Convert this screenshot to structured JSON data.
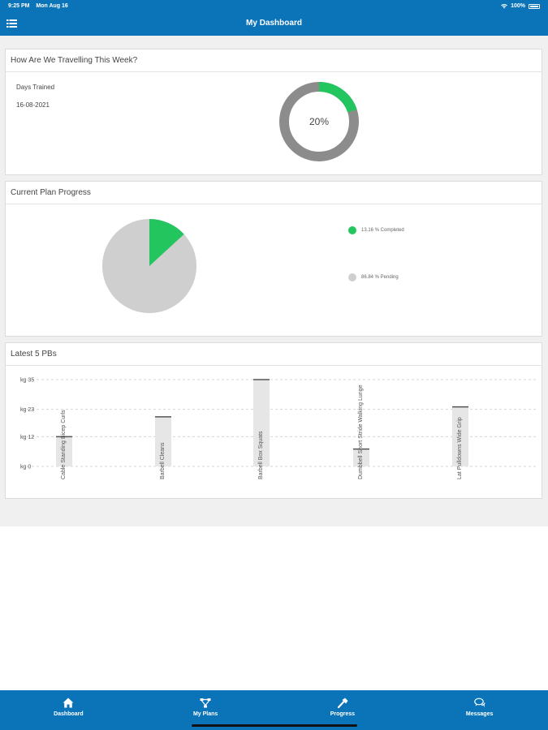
{
  "status": {
    "time": "9:25 PM",
    "date": "Mon Aug 16",
    "battery": "100%"
  },
  "header": {
    "title": "My Dashboard"
  },
  "week_card": {
    "title": "How Are We Travelling This Week?",
    "days_trained_label": "Days Trained",
    "date": "16-08-2021",
    "percent_label": "20%",
    "percent_value": 20,
    "colors": {
      "done": "#22c55e",
      "remaining": "#8c8c8c"
    }
  },
  "plan_card": {
    "title": "Current Plan Progress",
    "completed_label": "13.16 % Completed",
    "pending_label": "86.84 % Pending",
    "completed_value": 13.16,
    "pending_value": 86.84,
    "colors": {
      "completed": "#22c55e",
      "pending": "#cfcfcf"
    }
  },
  "pbs_card": {
    "title": "Latest 5 PBs"
  },
  "chart_data": {
    "type": "bar",
    "categories": [
      "Cable Standing Bicep Curls",
      "Barbell Cleans",
      "Barbell Box Squats",
      "Dumbbell Short Stride Walking Lunge",
      "Lat Pulldowns Wide Grip"
    ],
    "values": [
      12,
      20,
      35,
      7,
      24
    ],
    "tick_labels": [
      "kg 0",
      "kg 12",
      "kg 23",
      "kg 35"
    ],
    "tick_values": [
      0,
      12,
      23,
      35
    ],
    "ylim": [
      0,
      35
    ],
    "bar_color": "#e6e6e6",
    "cap_color": "#555555"
  },
  "bottom_nav": {
    "items": [
      {
        "label": "Dashboard",
        "icon": "home-icon"
      },
      {
        "label": "My Plans",
        "icon": "share-nodes-icon"
      },
      {
        "label": "Progress",
        "icon": "hammer-icon"
      },
      {
        "label": "Messages",
        "icon": "chat-icon"
      }
    ]
  }
}
